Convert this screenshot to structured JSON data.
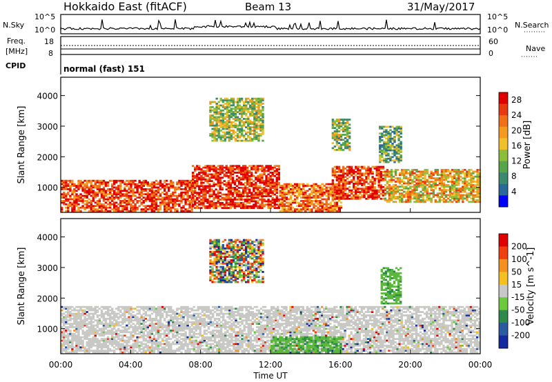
{
  "header": {
    "station": "Hokkaido East (fitACF)",
    "beam": "Beam 13",
    "date": "31/May/2017"
  },
  "top_panels": {
    "nsky_label": "N.Sky",
    "nsky_ticks": [
      "10^5",
      "10^0"
    ],
    "nsearch_label": "N.Search",
    "freq_label_line1": "Freq.",
    "freq_label_line2": "[MHz]",
    "freq_ticks": [
      "18",
      "8"
    ],
    "nave_label": "Nave",
    "nave_ticks": [
      "60",
      "0"
    ],
    "cpid_label": "CPID",
    "cpid_value": "normal (fast) 151"
  },
  "chart_data": [
    {
      "type": "heatmap",
      "name": "power",
      "xlabel": "Time UT",
      "ylabel": "Slant Range [km]",
      "x_ticks": [
        "00:00",
        "04:00",
        "08:00",
        "12:00",
        "16:00",
        "20:00",
        "00:00"
      ],
      "xlim_hours": [
        0,
        24
      ],
      "y_ticks": [
        1000,
        2000,
        3000,
        4000
      ],
      "ylim_km": [
        180,
        4600
      ],
      "colorbar": {
        "label": "Power [dB]",
        "ticks": [
          4,
          8,
          12,
          16,
          20,
          24,
          28
        ],
        "range": [
          0,
          30
        ],
        "colors": [
          "#0000ff",
          "#2a6a9a",
          "#3c8a6e",
          "#58a44a",
          "#8cbe3c",
          "#f0c02a",
          "#f49a20",
          "#f07018",
          "#e83a10",
          "#e00000"
        ]
      },
      "regions": [
        {
          "t0": 0.0,
          "t1": 7.5,
          "r0": 200,
          "r1": 1200,
          "level": 0.85
        },
        {
          "t0": 7.5,
          "t1": 12.5,
          "r0": 300,
          "r1": 1700,
          "level": 0.9
        },
        {
          "t0": 12.5,
          "t1": 16.0,
          "r0": 200,
          "r1": 1100,
          "level": 0.75
        },
        {
          "t0": 15.5,
          "t1": 18.5,
          "r0": 600,
          "r1": 1700,
          "level": 0.85
        },
        {
          "t0": 18.5,
          "t1": 24.0,
          "r0": 500,
          "r1": 1600,
          "level": 0.6
        },
        {
          "t0": 8.5,
          "t1": 11.5,
          "r0": 2500,
          "r1": 3900,
          "level": 0.45
        },
        {
          "t0": 15.5,
          "t1": 16.5,
          "r0": 2200,
          "r1": 3200,
          "level": 0.4
        },
        {
          "t0": 18.2,
          "t1": 19.5,
          "r0": 1800,
          "r1": 3000,
          "level": 0.35
        }
      ]
    },
    {
      "type": "heatmap",
      "name": "velocity",
      "xlabel": "Time UT",
      "ylabel": "Slant Range [km]",
      "x_ticks": [
        "00:00",
        "04:00",
        "08:00",
        "12:00",
        "16:00",
        "20:00",
        "00:00"
      ],
      "xlim_hours": [
        0,
        24
      ],
      "y_ticks": [
        1000,
        2000,
        3000,
        4000
      ],
      "ylim_km": [
        180,
        4600
      ],
      "colorbar": {
        "label": "Velocity [m s^-1]",
        "ticks": [
          200,
          100,
          50,
          15,
          -15,
          -50,
          -100,
          -200
        ],
        "colors": [
          "#1428a0",
          "#2a5aa0",
          "#2e8a4a",
          "#6cc83c",
          "#c8c8c8",
          "#f4c020",
          "#f49020",
          "#f04010",
          "#e00000"
        ]
      },
      "regions": [
        {
          "t0": 0.0,
          "t1": 24.0,
          "r0": 200,
          "r1": 1700,
          "class": "gray"
        },
        {
          "t0": 12.0,
          "t1": 16.0,
          "r0": 200,
          "r1": 700,
          "class": "green"
        },
        {
          "t0": 8.5,
          "t1": 11.5,
          "r0": 2500,
          "r1": 3900,
          "class": "mixed"
        },
        {
          "t0": 18.3,
          "t1": 19.5,
          "r0": 1800,
          "r1": 3000,
          "class": "green"
        }
      ]
    }
  ]
}
